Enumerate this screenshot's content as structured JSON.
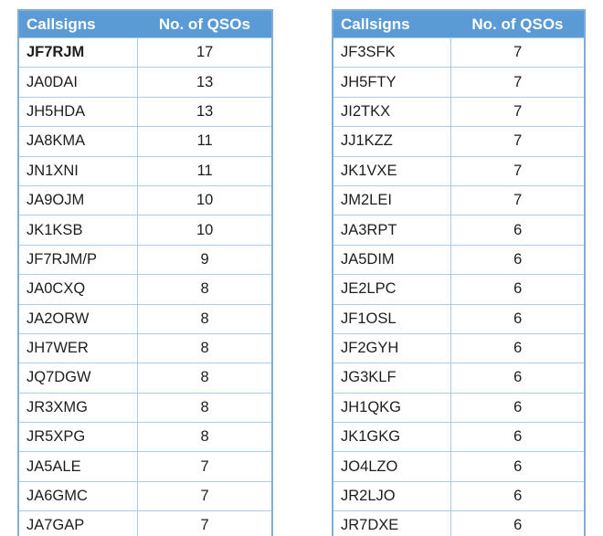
{
  "style": {
    "header_bg": "#5B9BD5",
    "header_text": "#FFFFFF",
    "border_color": "#A9CBE8",
    "outer_border_color": "#7FAEDC",
    "text_color": "#1E1E1E",
    "page_bg": "#FFFFFF"
  },
  "tables": [
    {
      "headers": [
        "Callsigns",
        "No. of QSOs"
      ],
      "rows": [
        {
          "callsign": "JF7RJM",
          "qsos": "17",
          "bold": true
        },
        {
          "callsign": "JA0DAI",
          "qsos": "13"
        },
        {
          "callsign": "JH5HDA",
          "qsos": "13"
        },
        {
          "callsign": "JA8KMA",
          "qsos": "11"
        },
        {
          "callsign": "JN1XNI",
          "qsos": "11"
        },
        {
          "callsign": "JA9OJM",
          "qsos": "10"
        },
        {
          "callsign": "JK1KSB",
          "qsos": "10"
        },
        {
          "callsign": "JF7RJM/P",
          "qsos": "9"
        },
        {
          "callsign": "JA0CXQ",
          "qsos": "8"
        },
        {
          "callsign": "JA2ORW",
          "qsos": "8"
        },
        {
          "callsign": "JH7WER",
          "qsos": "8"
        },
        {
          "callsign": "JQ7DGW",
          "qsos": "8"
        },
        {
          "callsign": "JR3XMG",
          "qsos": "8"
        },
        {
          "callsign": "JR5XPG",
          "qsos": "8"
        },
        {
          "callsign": "JA5ALE",
          "qsos": "7"
        },
        {
          "callsign": "JA6GMC",
          "qsos": "7"
        },
        {
          "callsign": "JA7GAP",
          "qsos": "7"
        }
      ]
    },
    {
      "headers": [
        "Callsigns",
        "No. of QSOs"
      ],
      "rows": [
        {
          "callsign": "JF3SFK",
          "qsos": "7"
        },
        {
          "callsign": "JH5FTY",
          "qsos": "7"
        },
        {
          "callsign": "JI2TKX",
          "qsos": "7"
        },
        {
          "callsign": "JJ1KZZ",
          "qsos": "7"
        },
        {
          "callsign": "JK1VXE",
          "qsos": "7"
        },
        {
          "callsign": "JM2LEI",
          "qsos": "7"
        },
        {
          "callsign": "JA3RPT",
          "qsos": "6"
        },
        {
          "callsign": "JA5DIM",
          "qsos": "6"
        },
        {
          "callsign": "JE2LPC",
          "qsos": "6"
        },
        {
          "callsign": "JF1OSL",
          "qsos": "6"
        },
        {
          "callsign": "JF2GYH",
          "qsos": "6"
        },
        {
          "callsign": "JG3KLF",
          "qsos": "6"
        },
        {
          "callsign": "JH1QKG",
          "qsos": "6"
        },
        {
          "callsign": "JK1GKG",
          "qsos": "6"
        },
        {
          "callsign": "JO4LZO",
          "qsos": "6"
        },
        {
          "callsign": "JR2LJO",
          "qsos": "6"
        },
        {
          "callsign": "JR7DXE",
          "qsos": "6"
        }
      ]
    }
  ]
}
